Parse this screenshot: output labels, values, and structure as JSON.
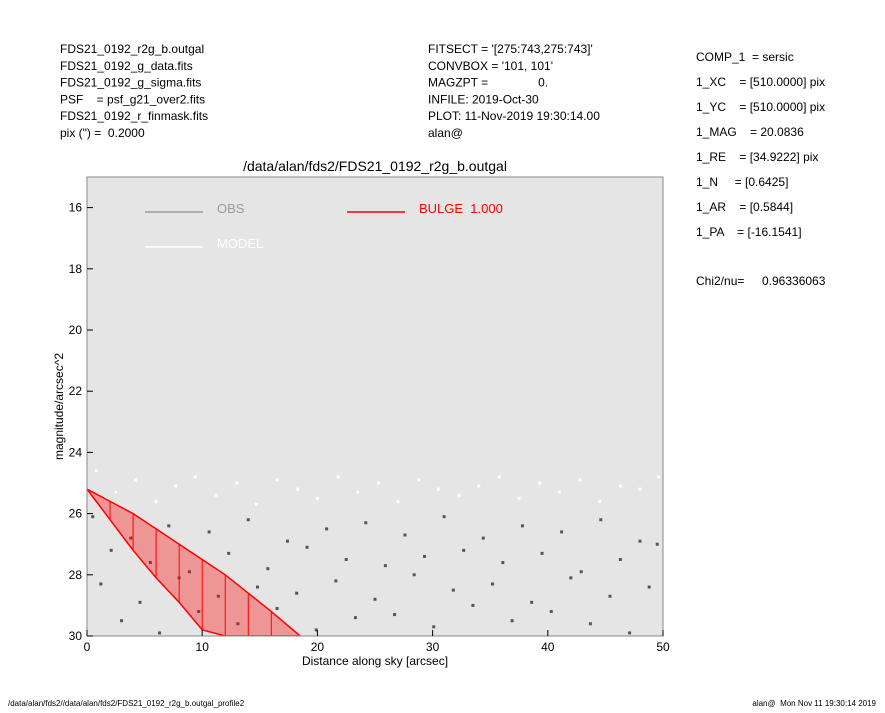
{
  "header": {
    "left": [
      "FDS21_0192_r2g_b.outgal",
      "FDS21_0192_g_data.fits",
      "FDS21_0192_g_sigma.fits",
      "PSF    = psf_g21_over2.fits",
      "FDS21_0192_r_finmask.fits",
      "pix (\") =  0.2000"
    ],
    "middle": [
      "FITSECT = '[275:743,275:743]'",
      "CONVBOX = '101, 101'",
      "MAGZPT =               0.",
      "INFILE: 2019-Oct-30",
      "PLOT: 11-Nov-2019 19:30:14.00",
      "alan@"
    ],
    "right": [
      "COMP_1  = sersic",
      "1_XC    = [510.0000] pix",
      "1_YC    = [510.0000] pix",
      "1_MAG    = 20.0836",
      "1_RE    = [34.9222] pix",
      "1_N     = [0.6425]",
      "1_AR    = [0.5844]",
      "1_PA    = [-16.1541]"
    ],
    "chi2_label": "Chi2/nu=",
    "chi2_value": "0.96336063"
  },
  "footer": {
    "left": "/data/alan/fds2//data/alan/fds2/FDS21_0192_r2g_b.outgal_profile2",
    "right": "alan@  Mon Nov 11 19:30:14 2019"
  },
  "chart_data": {
    "type": "scatter",
    "title": "/data/alan/fds2/FDS21_0192_r2g_b.outgal",
    "x_label": "Distance along sky [arcsec]",
    "y_label": "magnitude/arcsec^2",
    "xlim": [
      0,
      50
    ],
    "xticks": [
      0,
      10,
      20,
      30,
      40,
      50
    ],
    "ylim": [
      30,
      15
    ],
    "yticks": [
      16,
      18,
      20,
      22,
      24,
      26,
      28,
      30
    ],
    "background": "#e5e5e5",
    "series": [
      {
        "name": "OBS",
        "color": "#555555",
        "legend_color": "#999999",
        "x": [
          0.5,
          1.2,
          2.1,
          3,
          3.8,
          4.6,
          5.5,
          6.3,
          7.1,
          8,
          8.9,
          9.7,
          10.6,
          11.4,
          12.3,
          13.1,
          14,
          14.8,
          15.7,
          16.5,
          17.4,
          18.2,
          19.1,
          19.9,
          20.8,
          21.6,
          22.5,
          23.3,
          24.2,
          25,
          25.9,
          26.7,
          27.6,
          28.4,
          29.3,
          30.1,
          31,
          31.8,
          32.7,
          33.5,
          34.4,
          35.2,
          36.1,
          36.9,
          37.8,
          38.6,
          39.5,
          40.3,
          41.2,
          42,
          42.9,
          43.7,
          44.6,
          45.4,
          46.3,
          47.1,
          48,
          48.8,
          49.5
        ],
        "values": [
          26.1,
          28.3,
          27.2,
          29.5,
          26.8,
          28.9,
          27.6,
          29.9,
          26.4,
          28.1,
          27.9,
          29.2,
          26.6,
          28.7,
          27.3,
          29.6,
          26.2,
          28.4,
          27.8,
          29.1,
          26.9,
          28.6,
          27.1,
          29.8,
          26.5,
          28.2,
          27.5,
          29.4,
          26.3,
          28.8,
          27.7,
          29.3,
          26.7,
          28.0,
          27.4,
          29.7,
          26.1,
          28.5,
          27.2,
          29.0,
          26.8,
          28.3,
          27.6,
          29.5,
          26.4,
          28.9,
          27.3,
          29.2,
          26.6,
          28.1,
          27.9,
          29.6,
          26.2,
          28.7,
          27.5,
          29.9,
          26.9,
          28.4,
          27.0
        ]
      },
      {
        "name": "MODEL",
        "color": "#ffffff",
        "legend_color": "#ffffff",
        "x": [
          0.8,
          2.5,
          4.2,
          6,
          7.7,
          9.4,
          11.2,
          13,
          14.7,
          16.5,
          18.3,
          20,
          21.8,
          23.5,
          25.3,
          27,
          28.8,
          30.5,
          32.3,
          34,
          35.8,
          37.5,
          39.3,
          41,
          42.8,
          44.5,
          46.3,
          48,
          49.6
        ],
        "values": [
          24.6,
          25.3,
          24.9,
          25.6,
          25.1,
          24.8,
          25.4,
          25.0,
          25.7,
          24.9,
          25.2,
          25.5,
          24.8,
          25.3,
          25.0,
          25.6,
          24.9,
          25.2,
          25.4,
          25.1,
          24.8,
          25.5,
          25.0,
          25.3,
          24.9,
          25.6,
          25.1,
          25.2,
          24.8
        ]
      },
      {
        "name": "BULGE  1.000",
        "color": "#ff0000",
        "legend_color": "#ff0000",
        "band": true,
        "x": [
          0,
          2,
          4,
          6,
          8,
          10,
          12,
          14,
          16,
          18.5
        ],
        "values": [
          25.2,
          25.6,
          26.0,
          26.5,
          27.0,
          27.5,
          28.0,
          28.6,
          29.2,
          30
        ],
        "lower": [
          25.2,
          26.2,
          27.2,
          28.1,
          28.9,
          29.8,
          30,
          30,
          30,
          30
        ]
      }
    ]
  }
}
